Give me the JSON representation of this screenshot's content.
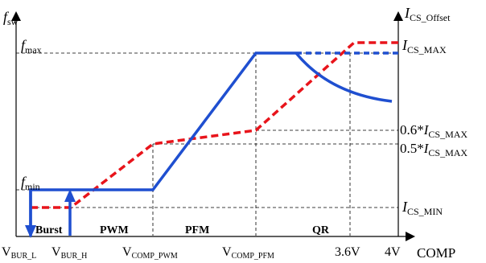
{
  "left_axis": {
    "label_main": "f",
    "label_sub": "sw",
    "ticks": [
      {
        "main": "f",
        "sub": "max"
      },
      {
        "main": "f",
        "sub": "min"
      }
    ]
  },
  "right_axis": {
    "label_main": "I",
    "label_sub": "CS_Offset",
    "ticks": [
      {
        "prefix": "",
        "main": "I",
        "sub": "CS_MAX"
      },
      {
        "prefix": "0.6*",
        "main": "I",
        "sub": "CS_MAX"
      },
      {
        "prefix": "0.5*",
        "main": "I",
        "sub": "CS_MAX"
      },
      {
        "prefix": "",
        "main": "I",
        "sub": "CS_MIN"
      }
    ]
  },
  "x_axis": {
    "label": "COMP",
    "ticks": [
      {
        "main": "V",
        "sub": "BUR_L"
      },
      {
        "main": "V",
        "sub": "BUR_H"
      },
      {
        "main": "V",
        "sub": "COMP_PWM"
      },
      {
        "main": "V",
        "sub": "COMP_PFM"
      },
      {
        "main": "3.6V",
        "sub": ""
      },
      {
        "main": "4V",
        "sub": ""
      }
    ]
  },
  "regions": [
    "Burst",
    "PWM",
    "PFM",
    "QR"
  ],
  "colors": {
    "fsw_curve": "#1f4fd0",
    "ics_curve": "#e8141b",
    "axis": "#000000"
  }
}
